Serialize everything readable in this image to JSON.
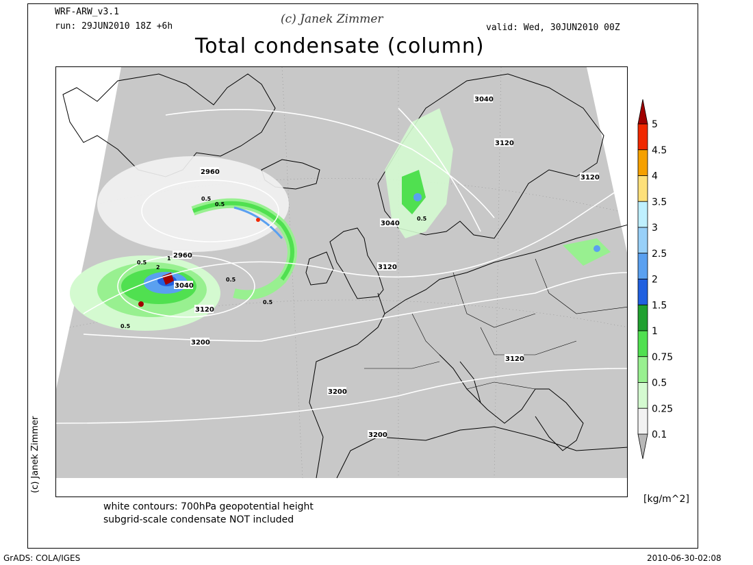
{
  "header": {
    "model": "WRF-ARW_v3.1",
    "run": "run: 29JUN2010 18Z +6h",
    "author": "(c) Janek Zimmer",
    "valid": "valid: Wed, 30JUN2010 00Z",
    "title": "Total condensate (column)"
  },
  "side_label": "(c) Janek Zimmer",
  "notes": {
    "line1": "white contours: 700hPa geopotential height",
    "line2": "subgrid-scale condensate NOT included"
  },
  "colorbar": {
    "unit": "[kg/m^2]",
    "levels": [
      "5",
      "4.5",
      "4",
      "3.5",
      "3",
      "2.5",
      "2",
      "1.5",
      "1",
      "0.75",
      "0.5",
      "0.25",
      "0.1"
    ],
    "colors": [
      "#a00000",
      "#f02800",
      "#f5a000",
      "#fde07a",
      "#bff0ff",
      "#98d0f8",
      "#5aa0f0",
      "#2060e0",
      "#20a030",
      "#50e050",
      "#98f090",
      "#d4fad0",
      "#f2f2f2",
      "#b8b8b8"
    ]
  },
  "contour_labels": [
    "2960",
    "2960",
    "3040",
    "3040",
    "3040",
    "3120",
    "3120",
    "3120",
    "3120",
    "3120",
    "3200",
    "3200",
    "3200",
    "0.5",
    "0.5",
    "0.5",
    "0.5",
    "0.5",
    "0.5",
    "0.5",
    "1",
    "2"
  ],
  "footer": {
    "left": "GrADS: COLA/IGES",
    "right": "2010-06-30-02:08"
  },
  "map_colors": {
    "land_gray": "#c8c8c8",
    "contour": "#ffffff",
    "coast": "#000000"
  }
}
